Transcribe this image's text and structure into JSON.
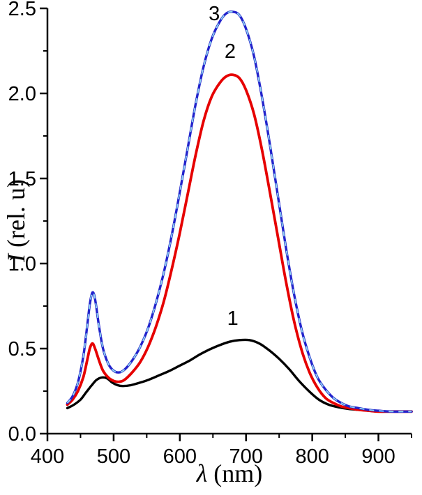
{
  "figure": {
    "xlabel_symbol": "λ",
    "xlabel_rest": " (nm)",
    "ylabel_symbol": "I",
    "ylabel_rest": " (rel. u)"
  },
  "chart_data": {
    "type": "line",
    "title": "",
    "xlabel": "λ (nm)",
    "ylabel": "I (rel. u)",
    "xlim": [
      400,
      950
    ],
    "ylim": [
      0,
      2.5
    ],
    "x_major_ticks": [
      400,
      500,
      600,
      700,
      800,
      900
    ],
    "x_minor_ticks": [
      450,
      550,
      650,
      750,
      850,
      950
    ],
    "y_major_ticks": [
      0,
      0.5,
      1,
      1.5,
      2,
      2.5
    ],
    "y_minor_ticks": [
      0.25,
      0.75,
      1.25,
      1.75,
      2.25
    ],
    "grid": false,
    "legend_position": "none",
    "series": [
      {
        "name": "1",
        "color": "#000000",
        "style": "solid",
        "width": 3.4,
        "label_pos": [
          680,
          0.64
        ],
        "points": [
          [
            430,
            0.15
          ],
          [
            440,
            0.17
          ],
          [
            450,
            0.2
          ],
          [
            458,
            0.24
          ],
          [
            466,
            0.28
          ],
          [
            474,
            0.315
          ],
          [
            482,
            0.33
          ],
          [
            490,
            0.325
          ],
          [
            498,
            0.3
          ],
          [
            506,
            0.285
          ],
          [
            514,
            0.28
          ],
          [
            526,
            0.285
          ],
          [
            540,
            0.3
          ],
          [
            555,
            0.32
          ],
          [
            570,
            0.345
          ],
          [
            585,
            0.37
          ],
          [
            600,
            0.4
          ],
          [
            615,
            0.43
          ],
          [
            630,
            0.465
          ],
          [
            645,
            0.495
          ],
          [
            660,
            0.52
          ],
          [
            675,
            0.54
          ],
          [
            690,
            0.55
          ],
          [
            705,
            0.55
          ],
          [
            720,
            0.53
          ],
          [
            735,
            0.49
          ],
          [
            750,
            0.44
          ],
          [
            765,
            0.38
          ],
          [
            780,
            0.31
          ],
          [
            795,
            0.25
          ],
          [
            810,
            0.2
          ],
          [
            825,
            0.17
          ],
          [
            840,
            0.155
          ],
          [
            855,
            0.145
          ],
          [
            870,
            0.14
          ],
          [
            885,
            0.135
          ],
          [
            900,
            0.13
          ],
          [
            920,
            0.13
          ],
          [
            950,
            0.13
          ]
        ]
      },
      {
        "name": "2",
        "color": "#e60000",
        "style": "solid",
        "width": 3.8,
        "label_pos": [
          676,
          2.21
        ],
        "points": [
          [
            430,
            0.17
          ],
          [
            438,
            0.2
          ],
          [
            446,
            0.25
          ],
          [
            454,
            0.33
          ],
          [
            460,
            0.43
          ],
          [
            464,
            0.5
          ],
          [
            468,
            0.53
          ],
          [
            472,
            0.5
          ],
          [
            478,
            0.43
          ],
          [
            484,
            0.37
          ],
          [
            492,
            0.33
          ],
          [
            500,
            0.31
          ],
          [
            508,
            0.305
          ],
          [
            516,
            0.315
          ],
          [
            528,
            0.36
          ],
          [
            540,
            0.42
          ],
          [
            552,
            0.51
          ],
          [
            564,
            0.63
          ],
          [
            576,
            0.78
          ],
          [
            588,
            0.97
          ],
          [
            600,
            1.18
          ],
          [
            612,
            1.41
          ],
          [
            624,
            1.64
          ],
          [
            636,
            1.84
          ],
          [
            648,
            1.98
          ],
          [
            660,
            2.06
          ],
          [
            670,
            2.1
          ],
          [
            680,
            2.11
          ],
          [
            690,
            2.09
          ],
          [
            700,
            2.02
          ],
          [
            712,
            1.88
          ],
          [
            724,
            1.67
          ],
          [
            736,
            1.42
          ],
          [
            748,
            1.16
          ],
          [
            760,
            0.9
          ],
          [
            772,
            0.67
          ],
          [
            784,
            0.49
          ],
          [
            796,
            0.36
          ],
          [
            808,
            0.27
          ],
          [
            820,
            0.21
          ],
          [
            832,
            0.18
          ],
          [
            844,
            0.16
          ],
          [
            856,
            0.15
          ],
          [
            870,
            0.14
          ],
          [
            885,
            0.135
          ],
          [
            900,
            0.13
          ],
          [
            920,
            0.13
          ],
          [
            950,
            0.13
          ]
        ]
      },
      {
        "name": "3",
        "color": "#2222cc",
        "style": "dashed-overlay",
        "width": 3.4,
        "overlay_color": "#8fd4f0",
        "label_pos": [
          652,
          2.43
        ],
        "points": [
          [
            430,
            0.18
          ],
          [
            438,
            0.22
          ],
          [
            446,
            0.3
          ],
          [
            454,
            0.45
          ],
          [
            460,
            0.63
          ],
          [
            464,
            0.76
          ],
          [
            468,
            0.83
          ],
          [
            472,
            0.79
          ],
          [
            478,
            0.63
          ],
          [
            484,
            0.5
          ],
          [
            492,
            0.41
          ],
          [
            500,
            0.37
          ],
          [
            508,
            0.36
          ],
          [
            516,
            0.375
          ],
          [
            528,
            0.43
          ],
          [
            540,
            0.51
          ],
          [
            552,
            0.62
          ],
          [
            564,
            0.77
          ],
          [
            576,
            0.95
          ],
          [
            588,
            1.17
          ],
          [
            600,
            1.42
          ],
          [
            612,
            1.68
          ],
          [
            624,
            1.94
          ],
          [
            636,
            2.16
          ],
          [
            648,
            2.32
          ],
          [
            660,
            2.42
          ],
          [
            670,
            2.47
          ],
          [
            680,
            2.48
          ],
          [
            690,
            2.46
          ],
          [
            700,
            2.38
          ],
          [
            712,
            2.22
          ],
          [
            724,
            1.98
          ],
          [
            736,
            1.7
          ],
          [
            748,
            1.4
          ],
          [
            760,
            1.1
          ],
          [
            772,
            0.83
          ],
          [
            784,
            0.61
          ],
          [
            796,
            0.45
          ],
          [
            808,
            0.33
          ],
          [
            820,
            0.26
          ],
          [
            832,
            0.21
          ],
          [
            844,
            0.18
          ],
          [
            856,
            0.16
          ],
          [
            870,
            0.15
          ],
          [
            885,
            0.14
          ],
          [
            900,
            0.135
          ],
          [
            920,
            0.13
          ],
          [
            950,
            0.13
          ]
        ]
      }
    ]
  }
}
